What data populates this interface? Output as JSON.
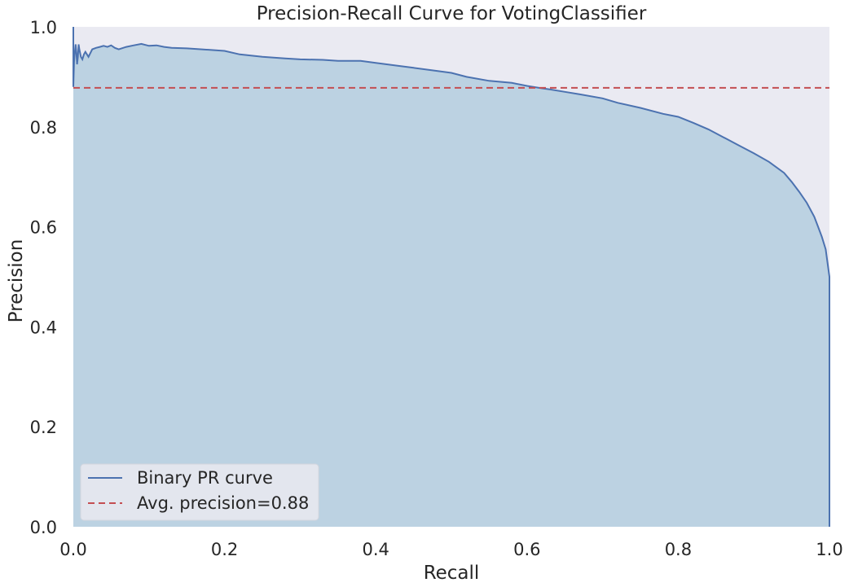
{
  "chart_data": {
    "type": "area",
    "title": "Precision-Recall Curve for VotingClassifier",
    "xlabel": "Recall",
    "ylabel": "Precision",
    "xlim": [
      0.0,
      1.0
    ],
    "ylim": [
      0.0,
      1.0
    ],
    "xticks": [
      "0.0",
      "0.2",
      "0.4",
      "0.6",
      "0.8",
      "1.0"
    ],
    "yticks": [
      "0.0",
      "0.2",
      "0.4",
      "0.6",
      "0.8",
      "1.0"
    ],
    "grid": false,
    "legend_position": "lower-left",
    "series": [
      {
        "name": "Binary PR curve",
        "style": "solid",
        "color": "#4c72b0",
        "fill_color": "#bcd2e2",
        "x": [
          0.0,
          0.0,
          0.001,
          0.002,
          0.003,
          0.004,
          0.005,
          0.006,
          0.007,
          0.008,
          0.01,
          0.012,
          0.014,
          0.016,
          0.02,
          0.025,
          0.03,
          0.035,
          0.04,
          0.045,
          0.05,
          0.055,
          0.06,
          0.07,
          0.08,
          0.09,
          0.1,
          0.11,
          0.12,
          0.13,
          0.15,
          0.17,
          0.2,
          0.22,
          0.25,
          0.28,
          0.3,
          0.33,
          0.35,
          0.38,
          0.4,
          0.43,
          0.45,
          0.48,
          0.5,
          0.52,
          0.55,
          0.58,
          0.6,
          0.62,
          0.63,
          0.65,
          0.67,
          0.7,
          0.72,
          0.75,
          0.78,
          0.8,
          0.82,
          0.84,
          0.86,
          0.88,
          0.9,
          0.92,
          0.94,
          0.95,
          0.96,
          0.97,
          0.98,
          0.985,
          0.99,
          0.995,
          1.0,
          1.0
        ],
        "y": [
          1.0,
          0.88,
          0.93,
          0.95,
          0.965,
          0.95,
          0.925,
          0.94,
          0.965,
          0.955,
          0.94,
          0.935,
          0.945,
          0.95,
          0.94,
          0.955,
          0.958,
          0.96,
          0.962,
          0.96,
          0.963,
          0.958,
          0.955,
          0.96,
          0.963,
          0.966,
          0.962,
          0.963,
          0.96,
          0.958,
          0.957,
          0.955,
          0.952,
          0.945,
          0.94,
          0.937,
          0.935,
          0.934,
          0.932,
          0.932,
          0.928,
          0.922,
          0.918,
          0.912,
          0.908,
          0.9,
          0.892,
          0.888,
          0.882,
          0.877,
          0.875,
          0.87,
          0.865,
          0.857,
          0.848,
          0.838,
          0.826,
          0.82,
          0.808,
          0.795,
          0.779,
          0.763,
          0.747,
          0.73,
          0.708,
          0.69,
          0.67,
          0.648,
          0.62,
          0.6,
          0.58,
          0.555,
          0.5,
          0.0
        ]
      },
      {
        "name": "Avg. precision=0.88",
        "style": "dashed",
        "color": "#c44e52",
        "x": [
          0.0,
          1.0
        ],
        "y": [
          0.878,
          0.878
        ]
      }
    ]
  },
  "colors": {
    "plot_background": "#eaeaf2",
    "curve": "#4c72b0",
    "fill": "#bcd2e2",
    "avg_line": "#c44e52",
    "legend_background": "#e3e6ee"
  }
}
